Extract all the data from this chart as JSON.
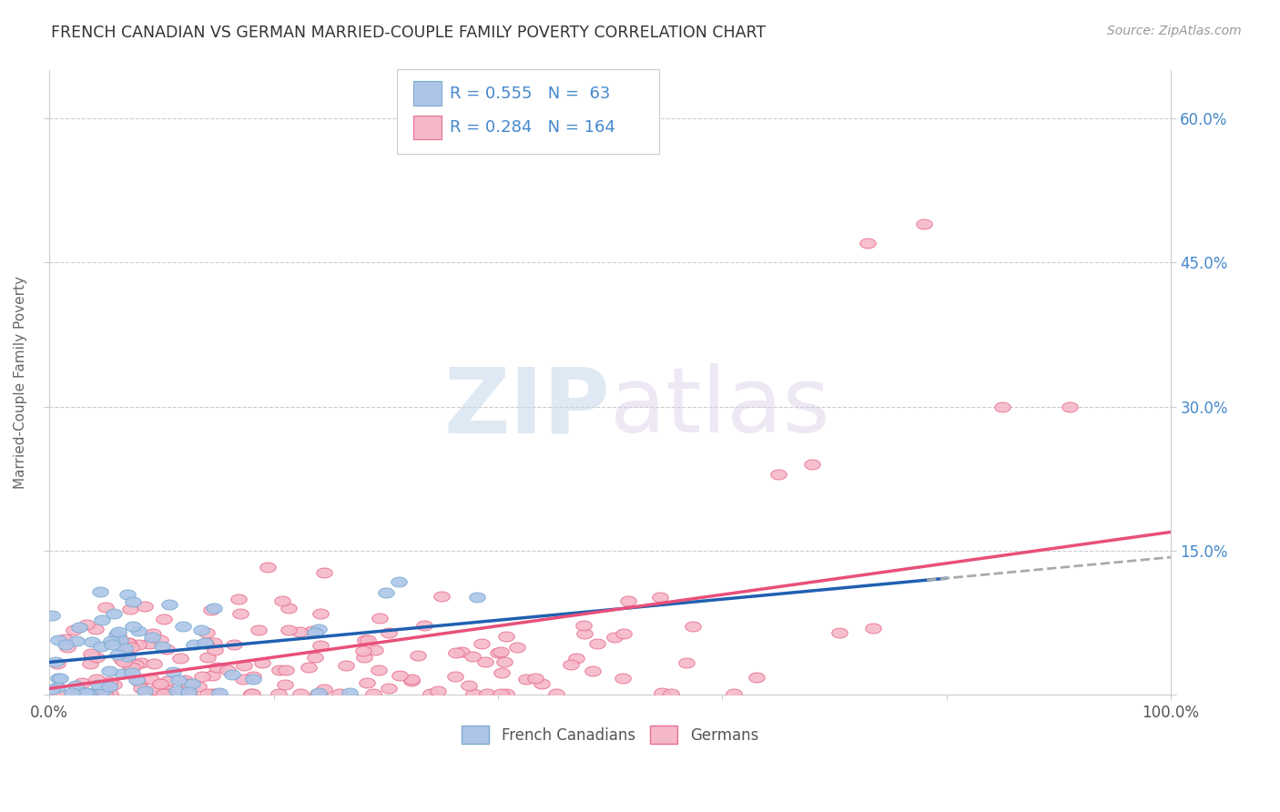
{
  "title": "FRENCH CANADIAN VS GERMAN MARRIED-COUPLE FAMILY POVERTY CORRELATION CHART",
  "source": "Source: ZipAtlas.com",
  "ylabel": "Married-Couple Family Poverty",
  "xlim": [
    0,
    100
  ],
  "ylim": [
    0,
    65
  ],
  "xticks": [
    0,
    20,
    40,
    60,
    80,
    100
  ],
  "xticklabels": [
    "0.0%",
    "",
    "",
    "",
    "",
    "100.0%"
  ],
  "yticks": [
    0,
    15,
    30,
    45,
    60
  ],
  "yticklabels": [
    "",
    "15.0%",
    "30.0%",
    "45.0%",
    "60.0%"
  ],
  "french_R": 0.555,
  "french_N": 63,
  "german_R": 0.284,
  "german_N": 164,
  "watermark_zip": "ZIP",
  "watermark_atlas": "atlas",
  "bg_color": "#ffffff",
  "grid_color": "#cccccc",
  "french_color": "#adc6e8",
  "french_edge": "#7aaad0",
  "german_color": "#f5b8c8",
  "german_edge": "#e87090",
  "french_trend_color": "#2060b0",
  "german_trend_color": "#e8507a",
  "dashed_trend_color": "#aaaaaa",
  "title_color": "#333333",
  "source_color": "#999999",
  "legend_r_color": "#4488cc",
  "tick_color": "#4488cc",
  "seed_french": 7,
  "seed_german": 99
}
